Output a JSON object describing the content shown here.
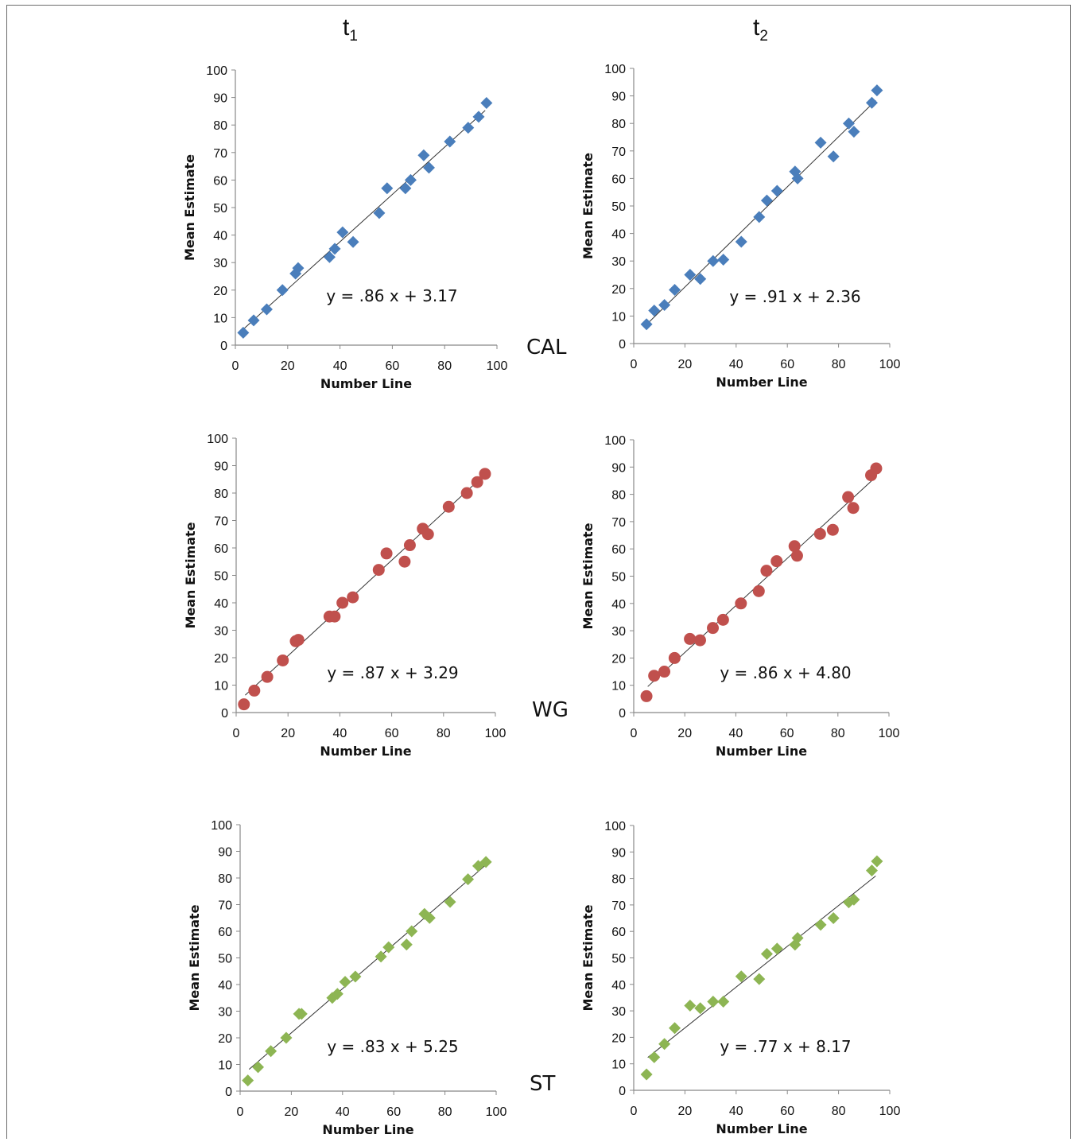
{
  "column_headers": [
    {
      "base": "t",
      "sub": "1"
    },
    {
      "base": "t",
      "sub": "2"
    }
  ],
  "row_labels": [
    "CAL",
    "WG",
    "ST"
  ],
  "colors": {
    "CAL": "#4a7ebb",
    "WG": "#c0504d",
    "ST": "#8db553",
    "trend": "#333333",
    "axis": "#888888"
  },
  "chart_data": [
    {
      "type": "scatter",
      "row": "CAL",
      "column": "t1",
      "marker": "diamond",
      "xlabel": "Number Line",
      "ylabel": "Mean Estimate",
      "xlim": [
        0,
        100
      ],
      "ylim": [
        0,
        100
      ],
      "xticks": [
        0,
        20,
        40,
        60,
        80,
        100
      ],
      "yticks": [
        0,
        10,
        20,
        30,
        40,
        50,
        60,
        70,
        80,
        90,
        100
      ],
      "grid": false,
      "equation": "y = .86 x + 3.17",
      "slope": 0.86,
      "intercept": 3.17,
      "x": [
        3,
        7,
        12,
        18,
        23,
        24,
        36,
        38,
        41,
        45,
        55,
        58,
        65,
        67,
        72,
        74,
        82,
        89,
        93,
        96
      ],
      "y": [
        4.5,
        9,
        13,
        20,
        26,
        28,
        32,
        35,
        41,
        37.5,
        48,
        57,
        57,
        60,
        69,
        64.5,
        74,
        79,
        83,
        88
      ]
    },
    {
      "type": "scatter",
      "row": "CAL",
      "column": "t2",
      "marker": "diamond",
      "xlabel": "Number Line",
      "ylabel": "Mean Estimate",
      "xlim": [
        0,
        100
      ],
      "ylim": [
        0,
        100
      ],
      "xticks": [
        0,
        20,
        40,
        60,
        80,
        100
      ],
      "yticks": [
        0,
        10,
        20,
        30,
        40,
        50,
        60,
        70,
        80,
        90,
        100
      ],
      "grid": false,
      "equation": "y = .91 x + 2.36",
      "slope": 0.91,
      "intercept": 2.36,
      "x": [
        5,
        8,
        12,
        16,
        22,
        26,
        31,
        35,
        42,
        49,
        52,
        56,
        63,
        64,
        73,
        78,
        84,
        86,
        93,
        95
      ],
      "y": [
        7,
        12,
        14,
        19.5,
        25,
        23.5,
        30,
        30.5,
        37,
        46,
        52,
        55.5,
        62.5,
        60,
        73,
        68,
        80,
        77,
        87.5,
        92
      ]
    },
    {
      "type": "scatter",
      "row": "WG",
      "column": "t1",
      "marker": "circle",
      "xlabel": "Number Line",
      "ylabel": "Mean Estimate",
      "xlim": [
        0,
        100
      ],
      "ylim": [
        0,
        100
      ],
      "xticks": [
        0,
        20,
        40,
        60,
        80,
        100
      ],
      "yticks": [
        0,
        10,
        20,
        30,
        40,
        50,
        60,
        70,
        80,
        90,
        100
      ],
      "grid": false,
      "equation": "y = .87 x + 3.29",
      "slope": 0.87,
      "intercept": 3.29,
      "x": [
        3,
        7,
        12,
        18,
        23,
        24,
        36,
        38,
        41,
        45,
        55,
        58,
        65,
        67,
        72,
        74,
        82,
        89,
        93,
        96
      ],
      "y": [
        3,
        8,
        13,
        19,
        26,
        26.5,
        35,
        35,
        40,
        42,
        52,
        58,
        55,
        61,
        67,
        65,
        75,
        80,
        84,
        87
      ]
    },
    {
      "type": "scatter",
      "row": "WG",
      "column": "t2",
      "marker": "circle",
      "xlabel": "Number Line",
      "ylabel": "Mean Estimate",
      "xlim": [
        0,
        100
      ],
      "ylim": [
        0,
        100
      ],
      "xticks": [
        0,
        20,
        40,
        60,
        80,
        100
      ],
      "yticks": [
        0,
        10,
        20,
        30,
        40,
        50,
        60,
        70,
        80,
        90,
        100
      ],
      "grid": false,
      "equation": "y = .86 x + 4.80",
      "slope": 0.86,
      "intercept": 4.8,
      "x": [
        5,
        8,
        12,
        16,
        22,
        26,
        31,
        35,
        42,
        49,
        52,
        56,
        63,
        64,
        73,
        78,
        84,
        86,
        93,
        95
      ],
      "y": [
        6,
        13.5,
        15,
        20,
        27,
        26.5,
        31,
        34,
        40,
        44.5,
        52,
        55.5,
        61,
        57.5,
        65.5,
        67,
        79,
        75,
        87,
        89.5
      ]
    },
    {
      "type": "scatter",
      "row": "ST",
      "column": "t1",
      "marker": "diamond",
      "xlabel": "Number Line",
      "ylabel": "Mean Estimate",
      "xlim": [
        0,
        100
      ],
      "ylim": [
        0,
        100
      ],
      "xticks": [
        0,
        20,
        40,
        60,
        80,
        100
      ],
      "yticks": [
        0,
        10,
        20,
        30,
        40,
        50,
        60,
        70,
        80,
        90,
        100
      ],
      "grid": false,
      "equation": "y = .83 x + 5.25",
      "slope": 0.83,
      "intercept": 5.25,
      "x": [
        3,
        7,
        12,
        18,
        23,
        24,
        36,
        38,
        41,
        45,
        55,
        58,
        65,
        67,
        72,
        74,
        82,
        89,
        93,
        96
      ],
      "y": [
        4,
        9,
        15,
        20,
        29,
        29,
        35,
        36.5,
        41,
        43,
        50.5,
        54,
        55,
        60,
        66.5,
        65,
        71,
        79.5,
        84.5,
        86
      ]
    },
    {
      "type": "scatter",
      "row": "ST",
      "column": "t2",
      "marker": "diamond",
      "xlabel": "Number Line",
      "ylabel": "Mean Estimate",
      "xlim": [
        0,
        100
      ],
      "ylim": [
        0,
        100
      ],
      "xticks": [
        0,
        20,
        40,
        60,
        80,
        100
      ],
      "yticks": [
        0,
        10,
        20,
        30,
        40,
        50,
        60,
        70,
        80,
        90,
        100
      ],
      "grid": false,
      "equation": "y = .77 x + 8.17",
      "slope": 0.77,
      "intercept": 8.17,
      "x": [
        5,
        8,
        12,
        16,
        22,
        26,
        31,
        35,
        42,
        49,
        52,
        56,
        63,
        64,
        73,
        78,
        84,
        86,
        93,
        95
      ],
      "y": [
        6,
        12.5,
        17.5,
        23.5,
        32,
        31,
        33.5,
        33.5,
        43,
        42,
        51.5,
        53.5,
        55,
        57.5,
        62.5,
        65,
        71,
        72,
        83,
        86.5
      ]
    }
  ]
}
